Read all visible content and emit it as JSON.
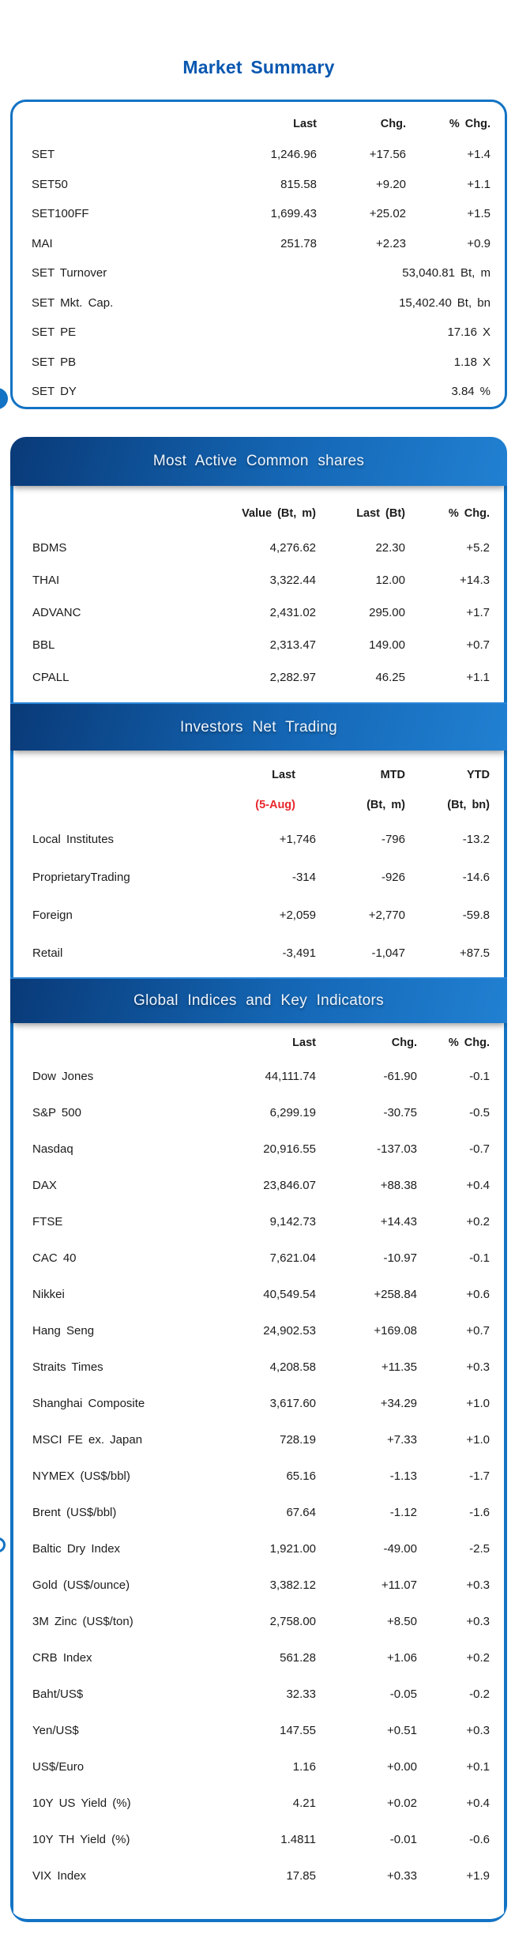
{
  "title": "Market Summary",
  "colors": {
    "brand_blue": "#1273c4",
    "title_blue": "#0857b0",
    "grad_dark": "#093a78",
    "grad_light": "#2180d2",
    "date_red": "#e8262c",
    "text": "#1c1c1c"
  },
  "market_summary": {
    "columns": [
      "Last",
      "Chg.",
      "% Chg."
    ],
    "rows": [
      {
        "label": "SET",
        "c1": "1,246.96",
        "c2": "+17.56",
        "c3": "+1.4"
      },
      {
        "label": "SET50",
        "c1": "815.58",
        "c2": "+9.20",
        "c3": "+1.1"
      },
      {
        "label": "SET100FF",
        "c1": "1,699.43",
        "c2": "+25.02",
        "c3": "+1.5"
      },
      {
        "label": "MAI",
        "c1": "251.78",
        "c2": "+2.23",
        "c3": "+0.9"
      },
      {
        "label": "SET Turnover",
        "c1": "53,040.81",
        "unit": "Bt, m"
      },
      {
        "label": "SET Mkt. Cap.",
        "c1": "15,402.40",
        "unit": "Bt, bn"
      },
      {
        "label": "SET PE",
        "c1": "17.16",
        "unit": "X"
      },
      {
        "label": "SET PB",
        "c1": "1.18",
        "unit": "X"
      },
      {
        "label": "SET DY",
        "c1": "3.84",
        "unit": "%"
      }
    ]
  },
  "most_active": {
    "header": "Most Active Common shares",
    "columns": [
      "Value (Bt, m)",
      "Last (Bt)",
      "% Chg."
    ],
    "rows": [
      {
        "label": "BDMS",
        "c1": "4,276.62",
        "c2": "22.30",
        "c3": "+5.2"
      },
      {
        "label": "THAI",
        "c1": "3,322.44",
        "c2": "12.00",
        "c3": "+14.3"
      },
      {
        "label": "ADVANC",
        "c1": "2,431.02",
        "c2": "295.00",
        "c3": "+1.7"
      },
      {
        "label": "BBL",
        "c1": "2,313.47",
        "c2": "149.00",
        "c3": "+0.7"
      },
      {
        "label": "CPALL",
        "c1": "2,282.97",
        "c2": "46.25",
        "c3": "+1.1"
      }
    ]
  },
  "investors": {
    "header": "Investors Net Trading",
    "columns_line1": [
      "Last",
      "MTD",
      "YTD"
    ],
    "columns_line2": [
      "(5-Aug)",
      "(Bt, m)",
      "(Bt, bn)"
    ],
    "rows": [
      {
        "label": "Local Institutes",
        "c1": "+1,746",
        "c2": "-796",
        "c3": "-13.2"
      },
      {
        "label": "ProprietaryTrading",
        "c1": "-314",
        "c2": "-926",
        "c3": "-14.6"
      },
      {
        "label": "Foreign",
        "c1": "+2,059",
        "c2": "+2,770",
        "c3": "-59.8"
      },
      {
        "label": "Retail",
        "c1": "-3,491",
        "c2": "-1,047",
        "c3": "+87.5"
      }
    ]
  },
  "global_indices": {
    "header": "Global Indices and Key Indicators",
    "columns": [
      "Last",
      "Chg.",
      "% Chg."
    ],
    "rows": [
      {
        "label": "Dow Jones",
        "c1": "44,111.74",
        "c2": "-61.90",
        "c3": "-0.1"
      },
      {
        "label": "S&P 500",
        "c1": "6,299.19",
        "c2": "-30.75",
        "c3": "-0.5"
      },
      {
        "label": "Nasdaq",
        "c1": "20,916.55",
        "c2": "-137.03",
        "c3": "-0.7"
      },
      {
        "label": "DAX",
        "c1": "23,846.07",
        "c2": "+88.38",
        "c3": "+0.4"
      },
      {
        "label": "FTSE",
        "c1": "9,142.73",
        "c2": "+14.43",
        "c3": "+0.2"
      },
      {
        "label": "CAC 40",
        "c1": "7,621.04",
        "c2": "-10.97",
        "c3": "-0.1"
      },
      {
        "label": "Nikkei",
        "c1": "40,549.54",
        "c2": "+258.84",
        "c3": "+0.6"
      },
      {
        "label": "Hang Seng",
        "c1": "24,902.53",
        "c2": "+169.08",
        "c3": "+0.7"
      },
      {
        "label": "Straits Times",
        "c1": "4,208.58",
        "c2": "+11.35",
        "c3": "+0.3"
      },
      {
        "label": "Shanghai Composite",
        "c1": "3,617.60",
        "c2": "+34.29",
        "c3": "+1.0"
      },
      {
        "label": "MSCI FE ex. Japan",
        "c1": "728.19",
        "c2": "+7.33",
        "c3": "+1.0"
      },
      {
        "label": "NYMEX (US$/bbl)",
        "c1": "65.16",
        "c2": "-1.13",
        "c3": "-1.7"
      },
      {
        "label": "Brent (US$/bbl)",
        "c1": "67.64",
        "c2": "-1.12",
        "c3": "-1.6"
      },
      {
        "label": "Baltic Dry Index",
        "c1": "1,921.00",
        "c2": "-49.00",
        "c3": "-2.5"
      },
      {
        "label": "Gold (US$/ounce)",
        "c1": "3,382.12",
        "c2": "+11.07",
        "c3": "+0.3"
      },
      {
        "label": "3M Zinc (US$/ton)",
        "c1": "2,758.00",
        "c2": "+8.50",
        "c3": "+0.3"
      },
      {
        "label": "CRB Index",
        "c1": "561.28",
        "c2": "+1.06",
        "c3": "+0.2"
      },
      {
        "label": "Baht/US$",
        "c1": "32.33",
        "c2": "-0.05",
        "c3": "-0.2"
      },
      {
        "label": "Yen/US$",
        "c1": "147.55",
        "c2": "+0.51",
        "c3": "+0.3"
      },
      {
        "label": "US$/Euro",
        "c1": "1.16",
        "c2": "+0.00",
        "c3": "+0.1"
      },
      {
        "label": "10Y US Yield (%)",
        "c1": "4.21",
        "c2": "+0.02",
        "c3": "+0.4"
      },
      {
        "label": "10Y TH Yield (%)",
        "c1": "1.4811",
        "c2": "-0.01",
        "c3": "-0.6"
      },
      {
        "label": "VIX Index",
        "c1": "17.85",
        "c2": "+0.33",
        "c3": "+1.9"
      }
    ]
  }
}
